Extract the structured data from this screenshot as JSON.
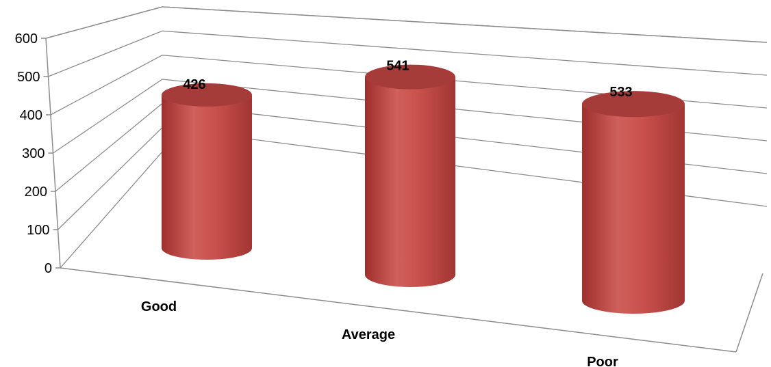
{
  "chart_data": {
    "type": "bar",
    "style": "3d-cylinder",
    "categories": [
      "Good",
      "Average",
      "Poor"
    ],
    "values": [
      426,
      541,
      533
    ],
    "data_labels": [
      "426",
      "541",
      "533"
    ],
    "ylim": [
      0,
      600
    ],
    "y_ticks": [
      "0",
      "100",
      "200",
      "300",
      "400",
      "500",
      "600"
    ],
    "grid": true,
    "legend": "none",
    "bar_color": "#c0504d"
  }
}
